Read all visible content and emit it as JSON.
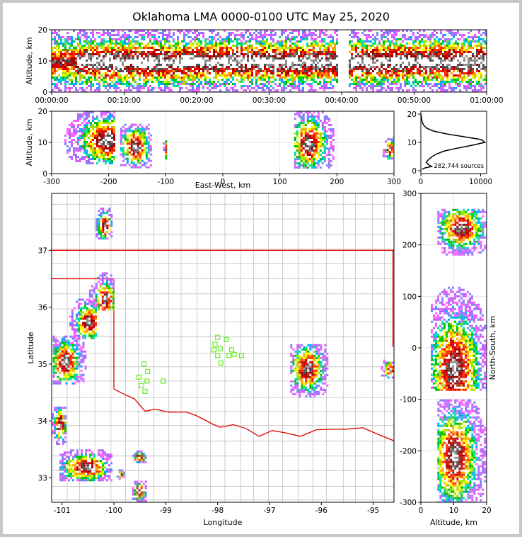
{
  "title": "Oklahoma LMA 0000-0100 UTC May 25, 2020",
  "colors": {
    "border": "#c8c8c8",
    "state_line": "#e00000",
    "county_line": "#c0c0c0",
    "station": "#66ee22",
    "grid": "#e6e6e6"
  },
  "chart_data": [
    {
      "id": "time-height",
      "type": "heatmap",
      "title": "",
      "xlabel": "",
      "ylabel": "Altitude, km",
      "xlim": [
        0,
        60
      ],
      "ylim": [
        0,
        20
      ],
      "x_tick_values": [
        0,
        10,
        20,
        30,
        40,
        50,
        60
      ],
      "x_tick_labels": [
        "00:00:00",
        "00:10:00",
        "00:20:00",
        "00:30:00",
        "00:40:00",
        "00:50:00",
        "01:00:00"
      ],
      "y_ticks": [
        0,
        10,
        20
      ],
      "gaps": [
        [
          39.5,
          40.8
        ]
      ]
    },
    {
      "id": "east-west-altitude",
      "type": "heatmap",
      "xlabel": "East-West, km",
      "ylabel": "Altitude, km",
      "xlim": [
        -300,
        300
      ],
      "ylim": [
        0,
        20
      ],
      "x_ticks": [
        -300,
        -200,
        -100,
        0,
        100,
        200,
        300
      ],
      "y_ticks": [
        0,
        10,
        20
      ],
      "clusters": [
        {
          "x": [
            -300,
            -190
          ],
          "y": [
            3,
            20
          ],
          "core_x": -205,
          "core_y": 11
        },
        {
          "x": [
            -180,
            -125
          ],
          "y": [
            2,
            16
          ],
          "core_x": -155,
          "core_y": 9
        },
        {
          "x": [
            -105,
            -100
          ],
          "y": [
            5,
            12
          ],
          "core_x": -102,
          "core_y": 8
        },
        {
          "x": [
            125,
            195
          ],
          "y": [
            2,
            20
          ],
          "core_x": 150,
          "core_y": 10
        },
        {
          "x": [
            280,
            300
          ],
          "y": [
            5,
            12
          ],
          "core_x": 292,
          "core_y": 8
        }
      ]
    },
    {
      "id": "altitude-histogram",
      "type": "line",
      "xlabel": "",
      "ylabel": "",
      "xlim": [
        0,
        11000
      ],
      "ylim": [
        -1,
        21
      ],
      "x_ticks": [
        0,
        10000
      ],
      "y_ticks": [
        0,
        10,
        20
      ],
      "annotation": "282,744 sources",
      "series": [
        {
          "name": "sources",
          "y": [
            0.5,
            1.0,
            1.5,
            2.0,
            2.5,
            3.0,
            4.0,
            5.0,
            6.0,
            7.0,
            8.0,
            9.0,
            10.0,
            11.0,
            12.0,
            13.0,
            14.0,
            15.0,
            16.0,
            17.0,
            18.0,
            19.0,
            20.0
          ],
          "values": [
            200,
            700,
            1800,
            1400,
            1100,
            900,
            1300,
            1900,
            2700,
            4000,
            6200,
            8600,
            10700,
            10100,
            7200,
            4300,
            2100,
            1000,
            500,
            250,
            150,
            80,
            30
          ]
        }
      ]
    },
    {
      "id": "plan-view",
      "type": "heatmap",
      "title": "",
      "xlabel": "Longitude",
      "ylabel": "Latitude",
      "xlim": [
        -101.2,
        -94.6
      ],
      "ylim": [
        32.57,
        38.0
      ],
      "x_ticks": [
        -101,
        -100,
        -99,
        -98,
        -97,
        -96,
        -95
      ],
      "y_ticks": [
        33,
        34,
        35,
        36,
        37
      ],
      "stations": [
        [
          -98.0,
          35.47
        ],
        [
          -97.83,
          35.43
        ],
        [
          -98.05,
          35.35
        ],
        [
          -97.95,
          35.27
        ],
        [
          -98.07,
          35.25
        ],
        [
          -97.73,
          35.25
        ],
        [
          -97.68,
          35.17
        ],
        [
          -97.78,
          35.15
        ],
        [
          -98.0,
          35.15
        ],
        [
          -97.54,
          35.15
        ],
        [
          -97.94,
          35.02
        ],
        [
          -99.42,
          35.0
        ],
        [
          -99.35,
          34.87
        ],
        [
          -99.52,
          34.77
        ],
        [
          -99.36,
          34.7
        ],
        [
          -99.05,
          34.7
        ],
        [
          -99.47,
          34.62
        ],
        [
          -99.4,
          34.52
        ]
      ],
      "clusters": [
        {
          "lon": [
            -100.48,
            -100.0
          ],
          "lat": [
            35.95,
            36.65
          ],
          "core": [
            -100.18,
            36.15
          ]
        },
        {
          "lon": [
            -100.9,
            -100.35
          ],
          "lat": [
            35.45,
            36.15
          ],
          "core": [
            -100.5,
            35.75
          ]
        },
        {
          "lon": [
            -101.18,
            -100.55
          ],
          "lat": [
            34.65,
            35.5
          ],
          "core": [
            -100.95,
            35.05
          ]
        },
        {
          "lon": [
            -100.35,
            -100.05
          ],
          "lat": [
            37.2,
            37.75
          ],
          "core": [
            -100.2,
            37.45
          ]
        },
        {
          "lon": [
            -96.6,
            -95.9
          ],
          "lat": [
            34.45,
            35.35
          ],
          "core": [
            -96.28,
            34.93
          ]
        },
        {
          "lon": [
            -94.85,
            -94.6
          ],
          "lat": [
            34.75,
            35.08
          ],
          "core": [
            -94.7,
            34.92
          ]
        },
        {
          "lon": [
            -101.2,
            -100.95
          ],
          "lat": [
            33.6,
            34.25
          ],
          "core": [
            -101.05,
            33.95
          ]
        },
        {
          "lon": [
            -101.05,
            -100.05
          ],
          "lat": [
            32.95,
            33.5
          ],
          "core": [
            -100.55,
            33.2
          ]
        },
        {
          "lon": [
            -99.65,
            -99.4
          ],
          "lat": [
            33.28,
            33.48
          ],
          "core": [
            -99.52,
            33.38
          ]
        },
        {
          "lon": [
            -99.65,
            -99.4
          ],
          "lat": [
            32.6,
            32.95
          ],
          "core": [
            -99.52,
            32.78
          ]
        },
        {
          "lon": [
            -99.95,
            -99.8
          ],
          "lat": [
            33.0,
            33.15
          ],
          "core": [
            -99.88,
            33.08
          ]
        }
      ]
    },
    {
      "id": "altitude-northsouth",
      "type": "heatmap",
      "xlabel": "Altitude, km",
      "ylabel": "North-South, km",
      "xlim": [
        0,
        20
      ],
      "ylim": [
        -300,
        300
      ],
      "x_ticks": [
        0,
        10,
        20
      ],
      "y_ticks": [
        -300,
        -200,
        -100,
        0,
        100,
        200,
        300
      ],
      "clusters": [
        {
          "alt": [
            3,
            20
          ],
          "ns": [
            -80,
            160
          ],
          "core_alt": 10,
          "core_ns": -40
        },
        {
          "alt": [
            5,
            20
          ],
          "ns": [
            180,
            270
          ],
          "core_alt": 12,
          "core_ns": 235
        },
        {
          "alt": [
            5,
            20
          ],
          "ns": [
            -300,
            -100
          ],
          "core_alt": 10,
          "core_ns": -210
        }
      ]
    }
  ]
}
